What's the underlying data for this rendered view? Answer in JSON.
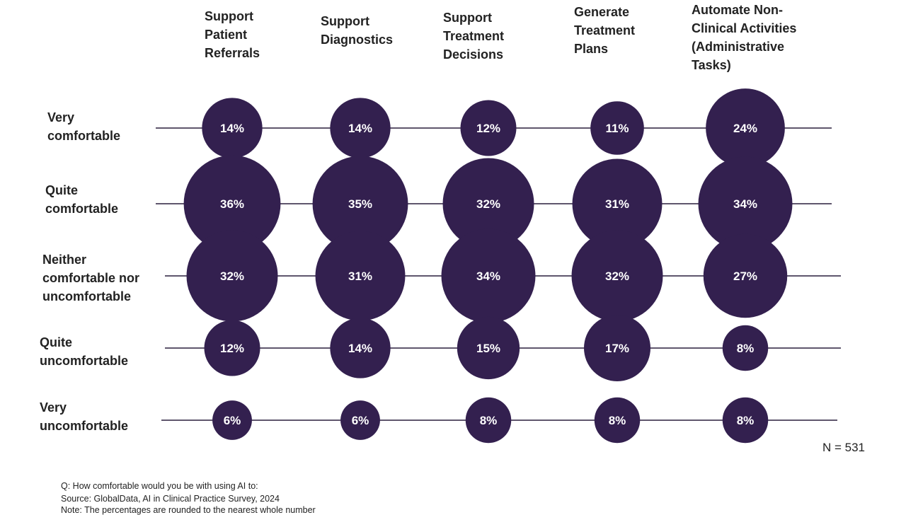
{
  "chart_data": {
    "type": "bubble",
    "columns": [
      "Support\nPatient\nReferrals",
      "Support\nDiagnostics",
      "Support\nTreatment\nDecisions",
      "Generate\nTreatment\nPlans",
      "Automate Non-\nClinical Activities\n(Administrative\nTasks)"
    ],
    "rows": [
      "Very\ncomfortable",
      "Quite\ncomfortable",
      "Neither\ncomfortable nor\nuncomfortable",
      "Quite\nuncomfortable",
      "Very\nuncomfortable"
    ],
    "values": [
      [
        14,
        14,
        12,
        11,
        24
      ],
      [
        36,
        35,
        32,
        31,
        34
      ],
      [
        32,
        31,
        34,
        32,
        27
      ],
      [
        12,
        14,
        15,
        17,
        8
      ],
      [
        6,
        6,
        8,
        8,
        8
      ]
    ],
    "unit": "%",
    "bubble_color": "#33204f",
    "label_color": "#ffffff",
    "sample_size": "N = 531"
  },
  "footer": {
    "question": "Q: How comfortable would you be with using AI to:",
    "source": "Source: GlobalData, AI in Clinical Practice Survey, 2024",
    "note": "Note: The percentages are rounded to the nearest whole number"
  }
}
